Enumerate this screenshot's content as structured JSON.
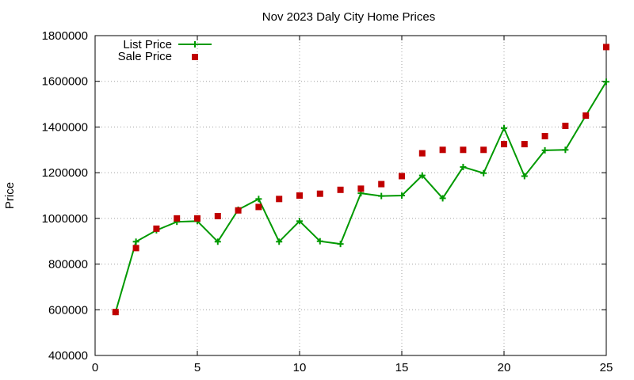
{
  "chart_data": {
    "type": "line",
    "title": "Nov 2023 Daly City Home Prices",
    "xlabel": "",
    "ylabel": "Price",
    "xlim": [
      0,
      25
    ],
    "ylim": [
      400000,
      1800000
    ],
    "xticks": [
      "0",
      "5",
      "10",
      "15",
      "20",
      "25"
    ],
    "yticks": [
      "400000",
      "600000",
      "800000",
      "1000000",
      "1200000",
      "1400000",
      "1600000",
      "1800000"
    ],
    "grid": true,
    "legend_position": "top-left",
    "x": [
      1,
      2,
      3,
      4,
      5,
      6,
      7,
      8,
      9,
      10,
      11,
      12,
      13,
      14,
      15,
      16,
      17,
      18,
      19,
      20,
      21,
      22,
      23,
      24,
      25
    ],
    "series": [
      {
        "name": "List Price",
        "style": "line-with-plus-markers",
        "color": "#009900",
        "values": [
          590000,
          898000,
          948000,
          985000,
          988000,
          898000,
          1038000,
          1085000,
          898000,
          988000,
          900000,
          888000,
          1110000,
          1098000,
          1100000,
          1188000,
          1088000,
          1225000,
          1198000,
          1395000,
          1185000,
          1298000,
          1300000,
          1450000,
          1598000
        ]
      },
      {
        "name": "Sale Price",
        "style": "square-points",
        "color": "#c00000",
        "values": [
          590000,
          870000,
          955000,
          1000000,
          1000000,
          1010000,
          1035000,
          1050000,
          1085000,
          1100000,
          1108000,
          1125000,
          1130000,
          1150000,
          1185000,
          1285000,
          1300000,
          1300000,
          1300000,
          1325000,
          1325000,
          1360000,
          1405000,
          1450000,
          1750000
        ]
      }
    ]
  }
}
